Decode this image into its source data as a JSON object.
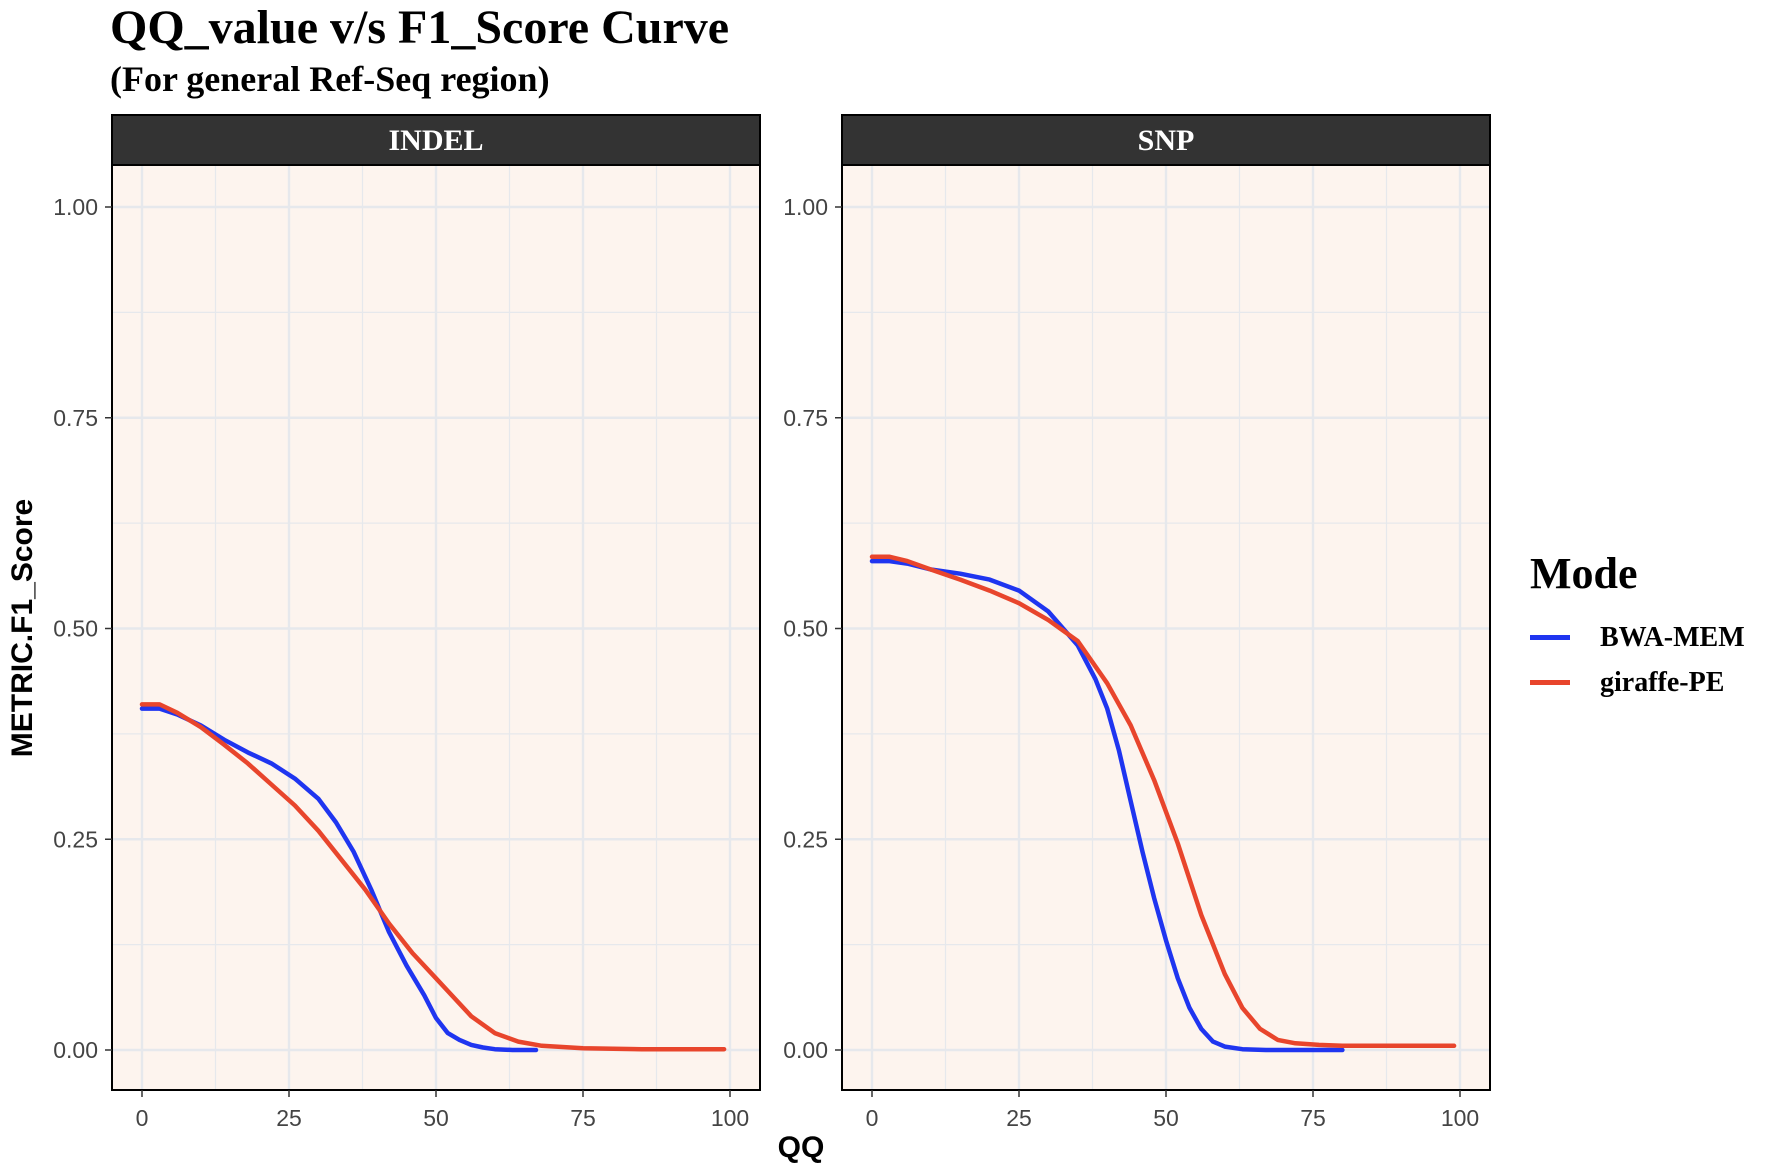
{
  "title": "QQ_value v/s F1_Score Curve",
  "subtitle": "(For general Ref-Seq region)",
  "colors": {
    "BWA-MEM": "#1f35f0",
    "giraffe-PE": "#e8452c",
    "panel_bg": "#fdf4ee",
    "strip_bg": "#333333",
    "grid": "#e6e8ec"
  },
  "legend": {
    "title": "Mode",
    "items": [
      {
        "label": "BWA-MEM",
        "color": "#1f35f0"
      },
      {
        "label": "giraffe-PE",
        "color": "#e8452c"
      }
    ]
  },
  "chart_data": {
    "type": "line",
    "xlabel": "QQ",
    "ylabel": "METRIC.F1_Score",
    "xlim": [
      0,
      100
    ],
    "ylim": [
      0,
      1
    ],
    "xticks": [
      "0",
      "25",
      "50",
      "75",
      "100"
    ],
    "yticks": [
      "0.00",
      "0.25",
      "0.50",
      "0.75",
      "1.00"
    ],
    "legend_position": "right",
    "facets": [
      {
        "label": "INDEL",
        "series": [
          {
            "name": "BWA-MEM",
            "x": [
              0,
              3,
              6,
              10,
              14,
              18,
              22,
              26,
              30,
              33,
              36,
              39,
              42,
              45,
              48,
              50,
              52,
              54,
              56,
              58,
              60,
              63,
              67
            ],
            "y": [
              0.405,
              0.405,
              0.398,
              0.385,
              0.368,
              0.353,
              0.34,
              0.322,
              0.298,
              0.27,
              0.235,
              0.19,
              0.14,
              0.1,
              0.065,
              0.038,
              0.02,
              0.012,
              0.006,
              0.003,
              0.001,
              0.0,
              0.0
            ]
          },
          {
            "name": "giraffe-PE",
            "x": [
              0,
              3,
              6,
              10,
              14,
              18,
              22,
              26,
              30,
              34,
              38,
              42,
              46,
              50,
              52,
              56,
              60,
              64,
              68,
              75,
              85,
              99
            ],
            "y": [
              0.41,
              0.41,
              0.4,
              0.383,
              0.362,
              0.34,
              0.315,
              0.29,
              0.26,
              0.225,
              0.19,
              0.15,
              0.115,
              0.085,
              0.07,
              0.04,
              0.02,
              0.01,
              0.005,
              0.002,
              0.001,
              0.001
            ]
          }
        ]
      },
      {
        "label": "SNP",
        "series": [
          {
            "name": "BWA-MEM",
            "x": [
              0,
              3,
              6,
              10,
              15,
              20,
              25,
              30,
              35,
              38,
              40,
              42,
              44,
              46,
              48,
              50,
              52,
              54,
              56,
              58,
              60,
              63,
              67,
              72,
              80
            ],
            "y": [
              0.58,
              0.58,
              0.577,
              0.57,
              0.565,
              0.558,
              0.545,
              0.52,
              0.48,
              0.44,
              0.405,
              0.355,
              0.295,
              0.235,
              0.18,
              0.13,
              0.085,
              0.05,
              0.025,
              0.01,
              0.004,
              0.001,
              0.0,
              0.0,
              0.0
            ]
          },
          {
            "name": "giraffe-PE",
            "x": [
              0,
              3,
              6,
              10,
              15,
              20,
              25,
              30,
              35,
              40,
              44,
              48,
              52,
              56,
              60,
              63,
              66,
              69,
              72,
              76,
              80,
              90,
              99
            ],
            "y": [
              0.585,
              0.585,
              0.58,
              0.57,
              0.558,
              0.545,
              0.53,
              0.51,
              0.485,
              0.435,
              0.385,
              0.32,
              0.245,
              0.16,
              0.09,
              0.05,
              0.025,
              0.012,
              0.008,
              0.006,
              0.005,
              0.005,
              0.005
            ]
          }
        ]
      }
    ]
  }
}
